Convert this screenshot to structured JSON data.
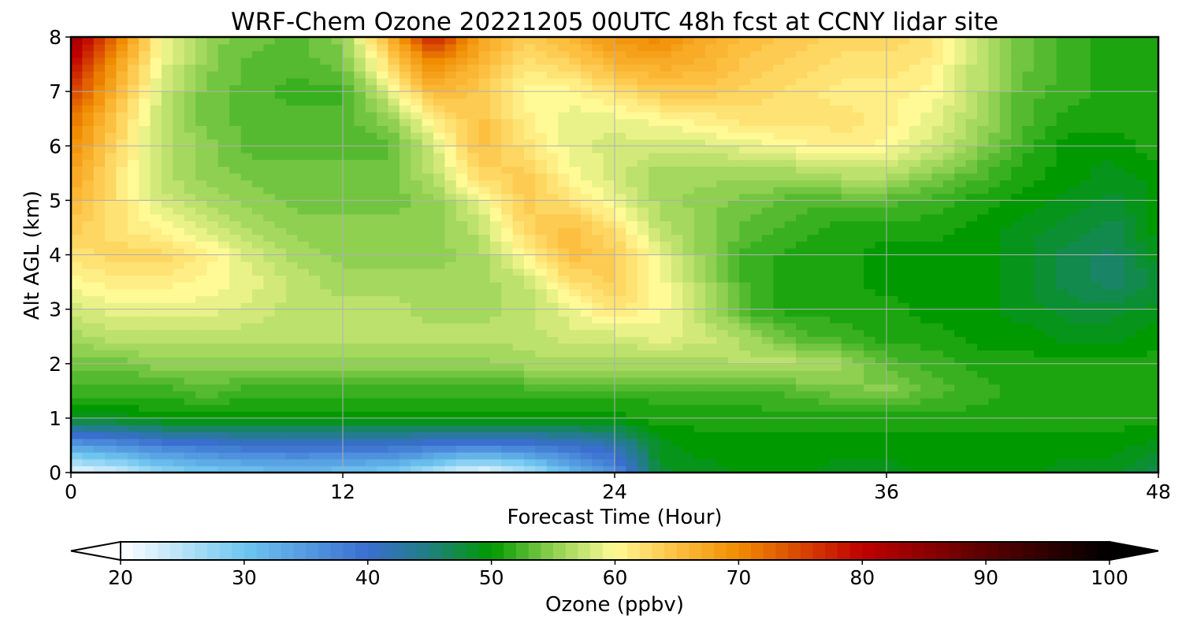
{
  "chart_data": {
    "type": "heatmap",
    "subtype": "filled-contour",
    "title": "WRF-Chem Ozone  20221205 00UTC 48h fcst at CCNY lidar site",
    "xlabel": "Forecast Time (Hour)",
    "ylabel": "Alt AGL (km)",
    "xlim": [
      0,
      48
    ],
    "ylim": [
      0,
      8
    ],
    "x_ticks": [
      0,
      12,
      24,
      36,
      48
    ],
    "y_ticks": [
      0,
      1,
      2,
      3,
      4,
      5,
      6,
      7,
      8
    ],
    "x_tick_labels": [
      "0",
      "12",
      "24",
      "36",
      "48"
    ],
    "y_tick_labels": [
      "0",
      "1",
      "2",
      "3",
      "4",
      "5",
      "6",
      "7",
      "8"
    ],
    "grid": true,
    "colorbar": {
      "label": "Ozone  (ppbv)",
      "range": [
        20,
        100
      ],
      "extend": "both",
      "ticks": [
        20,
        30,
        40,
        50,
        60,
        70,
        80,
        90,
        100
      ],
      "tick_labels": [
        "20",
        "30",
        "40",
        "50",
        "60",
        "70",
        "80",
        "90",
        "100"
      ],
      "stops": [
        {
          "value": 20,
          "color": "#ffffff"
        },
        {
          "value": 30,
          "color": "#6ec6f0"
        },
        {
          "value": 40,
          "color": "#3a6ed0"
        },
        {
          "value": 45,
          "color": "#1f7f80"
        },
        {
          "value": 50,
          "color": "#009a00"
        },
        {
          "value": 55,
          "color": "#8fd050"
        },
        {
          "value": 60,
          "color": "#fffa96"
        },
        {
          "value": 65,
          "color": "#fdbf40"
        },
        {
          "value": 70,
          "color": "#f08c00"
        },
        {
          "value": 80,
          "color": "#c00000"
        },
        {
          "value": 90,
          "color": "#5a0000"
        },
        {
          "value": 100,
          "color": "#000000"
        }
      ]
    },
    "grid_x_hours": [
      0,
      2,
      4,
      6,
      8,
      10,
      12,
      14,
      16,
      18,
      20,
      22,
      24,
      26,
      28,
      30,
      32,
      34,
      36,
      38,
      40,
      42,
      44,
      46,
      48
    ],
    "grid_y_km": [
      0,
      0.5,
      1,
      1.5,
      2,
      2.5,
      3,
      3.5,
      4,
      4.5,
      5,
      5.5,
      6,
      6.5,
      7,
      7.5,
      8
    ],
    "values": [
      [
        21,
        23,
        27,
        29,
        30,
        31,
        30,
        29,
        25,
        21,
        24,
        31,
        36,
        48,
        49,
        50,
        50,
        49,
        49,
        50,
        50,
        50,
        49,
        49,
        47
      ],
      [
        34,
        36,
        38,
        39,
        40,
        40,
        40,
        40,
        39,
        38,
        39,
        40,
        42,
        49,
        50,
        50,
        50,
        50,
        50,
        50,
        50,
        50,
        50,
        50,
        49
      ],
      [
        49,
        49,
        50,
        50,
        50,
        50,
        50,
        50,
        50,
        50,
        50,
        50,
        50,
        51,
        51,
        51,
        51,
        51,
        51,
        51,
        51,
        51,
        51,
        51,
        51
      ],
      [
        52,
        52,
        52,
        53,
        52,
        52,
        52,
        52,
        52,
        52,
        52,
        52,
        52,
        52,
        52,
        52,
        53,
        54,
        55,
        53,
        52,
        51,
        51,
        51,
        51
      ],
      [
        54,
        54,
        55,
        55,
        55,
        55,
        55,
        55,
        55,
        55,
        56,
        56,
        56,
        56,
        56,
        57,
        57,
        56,
        53,
        52,
        51,
        51,
        51,
        51,
        51
      ],
      [
        56,
        57,
        57,
        57,
        57,
        57,
        57,
        57,
        57,
        57,
        57,
        58,
        58,
        59,
        58,
        56,
        53,
        52,
        51,
        51,
        50,
        50,
        49,
        49,
        50
      ],
      [
        58,
        59,
        59,
        59,
        58,
        57,
        57,
        57,
        56,
        56,
        57,
        59,
        62,
        60,
        56,
        52,
        51,
        51,
        51,
        50,
        50,
        49,
        48,
        48,
        49
      ],
      [
        60,
        61,
        61,
        60,
        59,
        57,
        56,
        56,
        56,
        56,
        57,
        62,
        64,
        60,
        56,
        52,
        51,
        51,
        50,
        50,
        50,
        49,
        47,
        46,
        48
      ],
      [
        62,
        63,
        63,
        61,
        58,
        56,
        55,
        55,
        55,
        56,
        60,
        65,
        64,
        59,
        55,
        52,
        51,
        51,
        50,
        50,
        50,
        49,
        47,
        46,
        49
      ],
      [
        64,
        62,
        60,
        58,
        56,
        55,
        55,
        55,
        55,
        57,
        63,
        65,
        62,
        57,
        55,
        53,
        52,
        51,
        51,
        51,
        50,
        49,
        48,
        47,
        50
      ],
      [
        66,
        62,
        58,
        56,
        55,
        54,
        54,
        54,
        55,
        59,
        64,
        62,
        59,
        56,
        55,
        54,
        53,
        53,
        53,
        52,
        51,
        50,
        49,
        48,
        50
      ],
      [
        68,
        62,
        57,
        55,
        54,
        54,
        54,
        54,
        57,
        63,
        64,
        60,
        58,
        56,
        56,
        56,
        56,
        57,
        57,
        55,
        53,
        51,
        50,
        49,
        50
      ],
      [
        70,
        63,
        57,
        55,
        53,
        53,
        53,
        53,
        58,
        65,
        62,
        59,
        58,
        58,
        58,
        59,
        60,
        61,
        60,
        58,
        55,
        52,
        50,
        50,
        51
      ],
      [
        72,
        64,
        57,
        54,
        53,
        53,
        53,
        55,
        61,
        65,
        61,
        59,
        59,
        60,
        61,
        62,
        62,
        62,
        61,
        59,
        56,
        53,
        51,
        51,
        51
      ],
      [
        76,
        66,
        58,
        54,
        53,
        52,
        52,
        58,
        66,
        64,
        60,
        60,
        62,
        64,
        64,
        63,
        62,
        61,
        61,
        60,
        57,
        53,
        52,
        51,
        51
      ],
      [
        80,
        68,
        59,
        55,
        53,
        53,
        54,
        62,
        70,
        66,
        62,
        63,
        66,
        67,
        66,
        64,
        63,
        62,
        62,
        61,
        57,
        54,
        52,
        51,
        51
      ],
      [
        84,
        72,
        60,
        55,
        54,
        53,
        55,
        66,
        78,
        68,
        64,
        66,
        69,
        70,
        67,
        65,
        64,
        63,
        63,
        62,
        57,
        54,
        52,
        51,
        51
      ]
    ]
  }
}
